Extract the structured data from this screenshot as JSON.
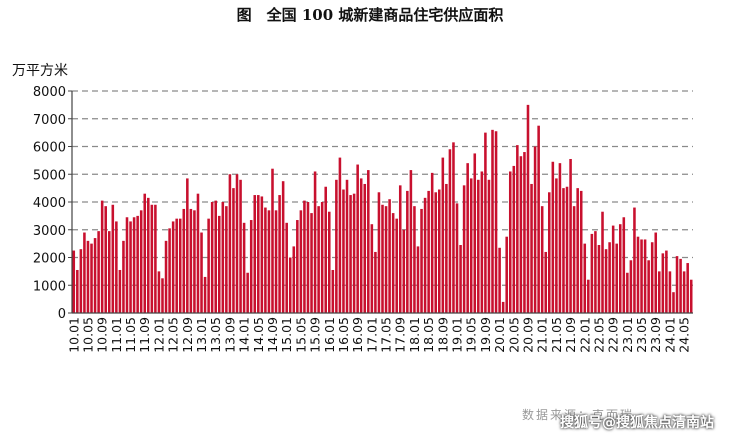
{
  "chart_data": {
    "type": "bar",
    "title": "图　全国 100 城新建商品住宅供应面积",
    "ylabel": "万平方米",
    "ylim": [
      0,
      8000
    ],
    "yticks": [
      0,
      1000,
      2000,
      3000,
      4000,
      5000,
      6000,
      7000,
      8000
    ],
    "grid": true,
    "color": "#c8102e",
    "xtick_labels": [
      "10.01",
      "10.05",
      "10.09",
      "11.01",
      "11.05",
      "11.09",
      "12.01",
      "12.05",
      "12.09",
      "13.01",
      "13.05",
      "13.09",
      "14.01",
      "14.05",
      "14.09",
      "15.01",
      "15.05",
      "15.09",
      "16.01",
      "16.05",
      "16.09",
      "17.01",
      "17.05",
      "17.09",
      "18.01",
      "18.05",
      "18.09",
      "19.01",
      "19.05",
      "19.09",
      "20.01",
      "20.05",
      "20.09",
      "21.01",
      "21.05",
      "21.09",
      "22.01",
      "22.05",
      "22.09",
      "23.01",
      "23.05",
      "23.09",
      "24.01",
      "24.05"
    ],
    "values": [
      2250,
      1550,
      2300,
      2900,
      2600,
      2500,
      2700,
      2950,
      4050,
      3850,
      2950,
      3900,
      3300,
      1550,
      2600,
      3450,
      3300,
      3450,
      3500,
      3700,
      4300,
      4150,
      3900,
      3900,
      1500,
      1250,
      2600,
      3050,
      3300,
      3400,
      3400,
      3750,
      4850,
      3750,
      3700,
      4300,
      2900,
      1300,
      3400,
      4000,
      4050,
      3500,
      4000,
      3850,
      5000,
      4500,
      5000,
      4800,
      3250,
      1450,
      3350,
      4250,
      4250,
      4200,
      3800,
      3700,
      5200,
      3700,
      4250,
      4750,
      3250,
      2000,
      2400,
      3350,
      3700,
      4050,
      4000,
      3600,
      5100,
      3850,
      4000,
      4550,
      3650,
      1550,
      4800,
      5600,
      4450,
      4800,
      4250,
      4300,
      5350,
      4850,
      4650,
      5150,
      3200,
      2200,
      4350,
      3900,
      3850,
      4100,
      3600,
      3400,
      4600,
      3000,
      4400,
      5150,
      3850,
      2400,
      3750,
      4150,
      4400,
      5050,
      4350,
      4450,
      5600,
      4650,
      5900,
      6150,
      3950,
      2450,
      4600,
      5400,
      4850,
      5750,
      4800,
      5100,
      6500,
      4800,
      6600,
      6550,
      2350,
      400,
      2750,
      5100,
      5300,
      6050,
      5650,
      5800,
      7500,
      4650,
      6000,
      6750,
      3850,
      2200,
      4350,
      5450,
      4850,
      5400,
      4500,
      4550,
      5550,
      3850,
      4500,
      4400,
      2500,
      1200,
      2850,
      2950,
      2450,
      3650,
      2300,
      2550,
      3150,
      2500,
      3200,
      3450,
      1450,
      1900,
      3800,
      2750,
      2650,
      2650,
      1900,
      2550,
      2900,
      1500,
      2150,
      2250,
      1500,
      750,
      2050,
      1950,
      1500,
      1800,
      1200
    ]
  },
  "source_text": "数据来源：克而瑞",
  "watermark_text": "搜狐号@搜狐焦点清南站"
}
